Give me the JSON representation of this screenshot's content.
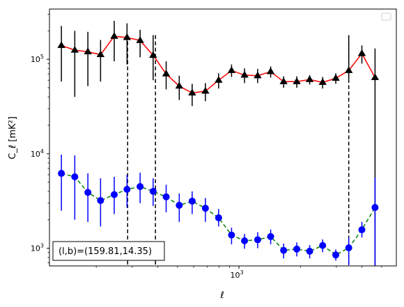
{
  "chart_data": {
    "type": "scatter",
    "xscale": "log",
    "yscale": "log",
    "xlim": [
      118,
      5900
    ],
    "ylim": [
      650,
      340000
    ],
    "xlabel": "ℓ",
    "ylabel": "C_ℓ [mK²]",
    "x_ticks": [
      {
        "value": 1000,
        "base": "10",
        "exp": "3"
      }
    ],
    "y_ticks": [
      {
        "value": 1000,
        "base": "10",
        "exp": "3"
      },
      {
        "value": 10000,
        "base": "10",
        "exp": "4"
      },
      {
        "value": 100000,
        "base": "10",
        "exp": "5"
      }
    ],
    "legend": "upper right (empty)",
    "annotation": "(l,b)=(159.81,14.35)",
    "annotation_loc": "lower left",
    "vlines": [
      285,
      390,
      3450
    ],
    "series": [
      {
        "color": "#ff0000",
        "marker": "triangle",
        "marker_color": "#000000",
        "errbar_color": "#000000",
        "line_style": "solid",
        "x": [
          135,
          157,
          182,
          210,
          245,
          283,
          328,
          380,
          440,
          510,
          590,
          685,
          795,
          920,
          1065,
          1235,
          1430,
          1655,
          1920,
          2220,
          2570,
          2980,
          3450,
          4000,
          4640
        ],
        "y": [
          140000,
          125000,
          120000,
          112000,
          175000,
          170000,
          158000,
          110000,
          70000,
          52000,
          44000,
          46000,
          60000,
          76000,
          68000,
          67000,
          74000,
          58000,
          58000,
          61000,
          57000,
          63000,
          76000,
          115000,
          64000
        ],
        "y_lo": [
          58000,
          40000,
          52000,
          58000,
          95000,
          88000,
          105000,
          60000,
          48000,
          37000,
          32000,
          36000,
          49000,
          65000,
          56000,
          56000,
          64000,
          50000,
          50000,
          54000,
          49000,
          55000,
          62000,
          90000,
          650
        ],
        "y_hi": [
          225000,
          200000,
          195000,
          160000,
          255000,
          240000,
          205000,
          180000,
          95000,
          67000,
          55000,
          56000,
          71000,
          88000,
          80000,
          79000,
          84000,
          66000,
          66000,
          68000,
          65000,
          71000,
          180000,
          140000,
          130000
        ]
      },
      {
        "color": "#008000",
        "marker": "circle",
        "marker_color": "#0000ff",
        "errbar_color": "#0000ff",
        "line_style": "dashed",
        "x": [
          135,
          157,
          182,
          210,
          245,
          283,
          328,
          380,
          440,
          510,
          590,
          685,
          795,
          920,
          1065,
          1235,
          1430,
          1655,
          1920,
          2220,
          2570,
          2980,
          3450,
          4000,
          4640
        ],
        "y": [
          6200,
          5700,
          3900,
          3200,
          3700,
          4200,
          4500,
          4000,
          3500,
          2850,
          3150,
          2650,
          2100,
          1380,
          1200,
          1230,
          1330,
          950,
          980,
          930,
          1070,
          850,
          1010,
          1570,
          2700
        ],
        "y_lo": [
          2500,
          2000,
          1900,
          1700,
          2300,
          2700,
          3000,
          2800,
          2400,
          1900,
          2300,
          1900,
          1700,
          1100,
          990,
          1000,
          1100,
          780,
          820,
          780,
          910,
          740,
          660,
          1300,
          650
        ],
        "y_hi": [
          9800,
          9600,
          6200,
          5500,
          5700,
          6000,
          6300,
          5500,
          4700,
          3800,
          4000,
          3400,
          2600,
          1650,
          1420,
          1480,
          1580,
          1120,
          1150,
          1080,
          1240,
          970,
          1300,
          1900,
          5600
        ]
      }
    ]
  }
}
